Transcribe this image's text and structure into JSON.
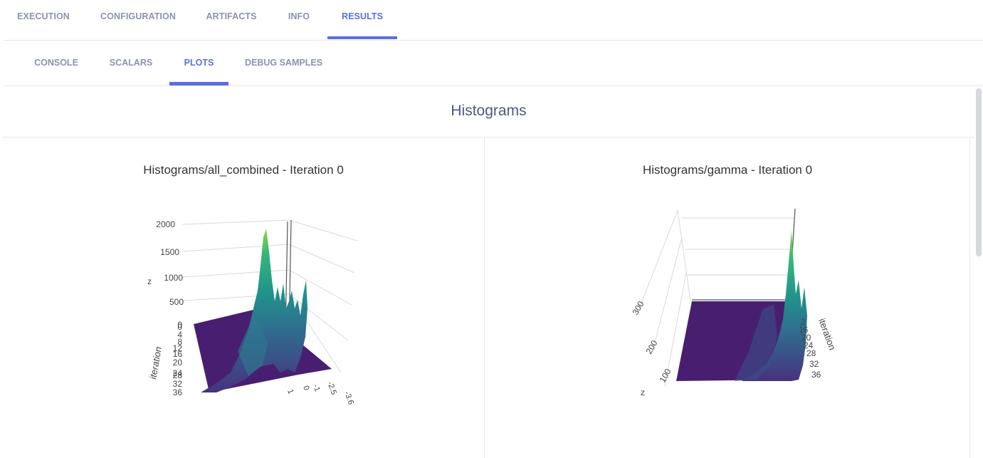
{
  "top_tabs": [
    {
      "label": "EXECUTION",
      "active": false
    },
    {
      "label": "CONFIGURATION",
      "active": false
    },
    {
      "label": "ARTIFACTS",
      "active": false
    },
    {
      "label": "INFO",
      "active": false
    },
    {
      "label": "RESULTS",
      "active": true
    }
  ],
  "sub_tabs": [
    {
      "label": "CONSOLE",
      "active": false
    },
    {
      "label": "SCALARS",
      "active": false
    },
    {
      "label": "PLOTS",
      "active": true
    },
    {
      "label": "DEBUG SAMPLES",
      "active": false
    }
  ],
  "section_title": "Histograms",
  "accent_color": "#5a6ee0",
  "plots": [
    {
      "title": "Histograms/all_combined - Iteration 0",
      "z_axis_title": "z",
      "z_ticks": [
        "2000",
        "1500",
        "1000",
        "500",
        "0"
      ],
      "iteration_axis_title": "iteration",
      "iteration_ticks": [
        "0",
        "4",
        "8",
        "12",
        "16",
        "20",
        "24",
        "28",
        "32",
        "36"
      ],
      "x_ticks": [
        "-3.6",
        "-2.5",
        "-1",
        "0",
        "1"
      ]
    },
    {
      "title": "Histograms/gamma - Iteration 0",
      "z_axis_title": "z",
      "z_ticks": [
        "300",
        "200",
        "100"
      ],
      "iteration_axis_title": "iteration",
      "iteration_ticks": [
        "2",
        "16",
        "20",
        "24",
        "28",
        "32",
        "36"
      ]
    }
  ],
  "colormap": [
    "#440154",
    "#3b528b",
    "#21918c",
    "#5ec962",
    "#fde725"
  ]
}
